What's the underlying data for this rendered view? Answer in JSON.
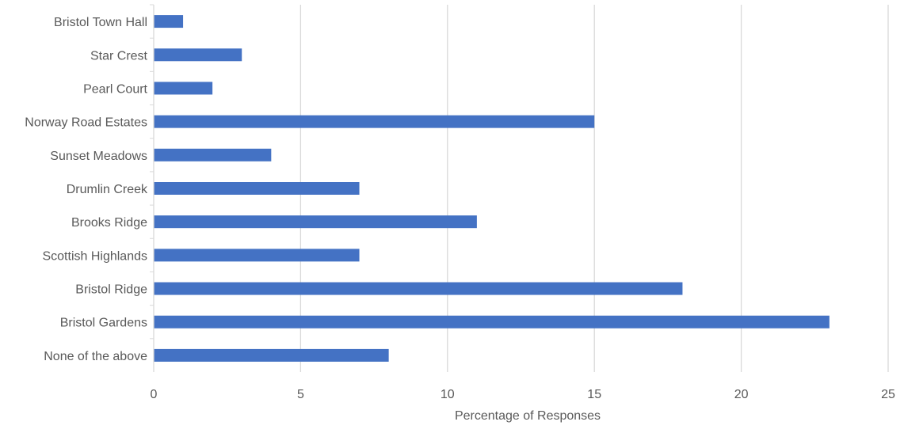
{
  "chart_data": {
    "type": "bar",
    "orientation": "horizontal",
    "categories": [
      "Bristol Town Hall",
      "Star Crest",
      "Pearl Court",
      "Norway Road Estates",
      "Sunset Meadows",
      "Drumlin Creek",
      "Brooks Ridge",
      "Scottish Highlands",
      "Bristol Ridge",
      "Bristol Gardens",
      "None of the above"
    ],
    "values": [
      1,
      3,
      2,
      15,
      4,
      7,
      11,
      7,
      18,
      23,
      8
    ],
    "title": "",
    "xlabel": "Percentage of Responses",
    "ylabel": "",
    "xlim": [
      0,
      25
    ],
    "xticks": [
      0,
      5,
      10,
      15,
      20,
      25
    ],
    "xtick_labels": [
      "0",
      "5",
      "10",
      "15",
      "20",
      "25"
    ],
    "grid": "vertical",
    "legend": "none",
    "bar_color": "#4472C4",
    "grid_color": "#D9D9D9",
    "text_color": "#595959"
  }
}
